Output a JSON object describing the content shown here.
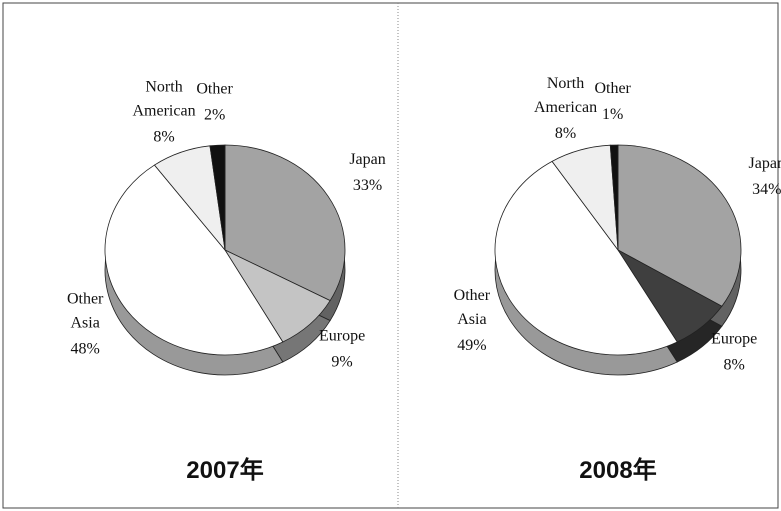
{
  "chart_data": [
    {
      "type": "pie",
      "title": "2007年",
      "categories": [
        "Japan",
        "Europe",
        "Other Asia",
        "North American",
        "Other"
      ],
      "values": [
        33,
        9,
        48,
        8,
        2
      ],
      "value_labels": [
        "33%",
        "9%",
        "48%",
        "8%",
        "2%"
      ],
      "colors": [
        "#a3a3a3",
        "#c4c4c4",
        "#ffffff",
        "#efefef",
        "#111111"
      ]
    },
    {
      "type": "pie",
      "title": "2008年",
      "categories": [
        "Japan",
        "Europe",
        "Other Asia",
        "North American",
        "Other"
      ],
      "values": [
        34,
        8,
        49,
        8,
        1
      ],
      "value_labels": [
        "34%",
        "8%",
        "49%",
        "8%",
        "1%"
      ],
      "colors": [
        "#a3a3a3",
        "#3f3f3f",
        "#ffffff",
        "#efefef",
        "#111111"
      ]
    }
  ]
}
